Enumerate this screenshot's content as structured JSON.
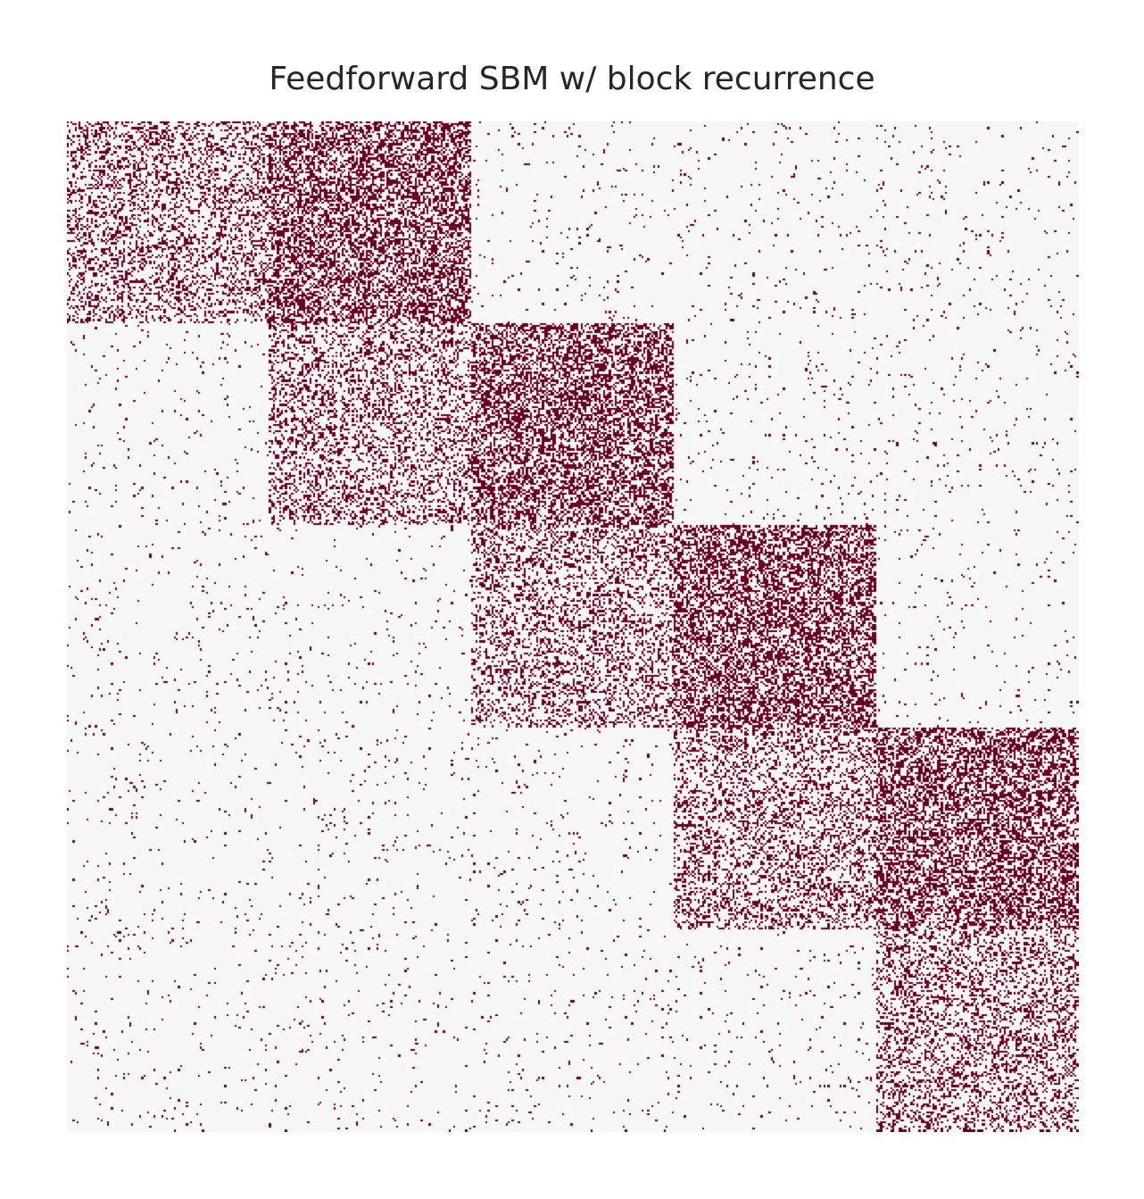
{
  "chart_data": {
    "type": "heatmap",
    "title": "Feedforward SBM w/ block recurrence",
    "n_blocks": 5,
    "nodes_per_block": 100,
    "colors": {
      "background": "#f7f7f7",
      "edge": "#67001f"
    },
    "edge_probabilities": {
      "within_block": 0.3,
      "feedforward_next_block": 0.5,
      "other": 0.02
    },
    "grid": false,
    "axes_visible": false,
    "legend": "none"
  }
}
